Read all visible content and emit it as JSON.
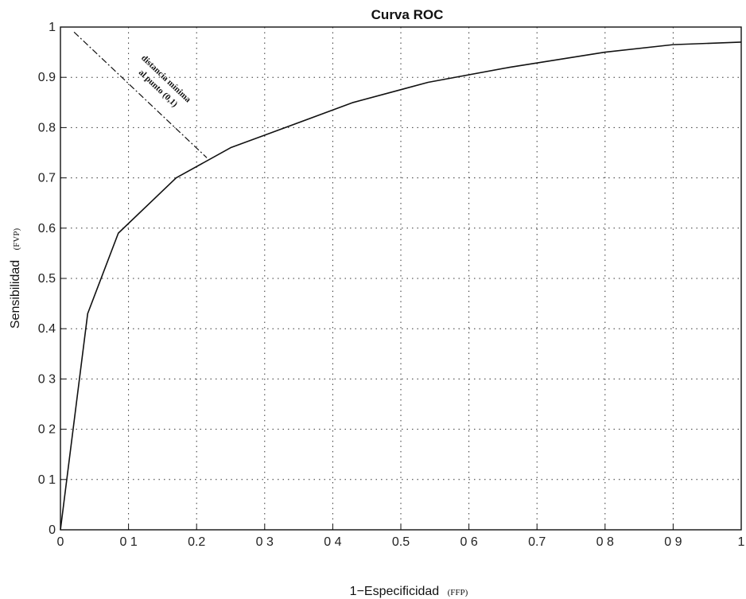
{
  "chart_data": {
    "type": "line",
    "title": "Curva ROC",
    "xlabel": "1−Especificidad",
    "xlabel_unit": "(FFP)",
    "ylabel": "Sensibilidad",
    "ylabel_unit": "(FVP)",
    "xlim": [
      0,
      1
    ],
    "ylim": [
      0,
      1
    ],
    "grid": true,
    "x_ticks": [
      0,
      0.1,
      0.2,
      0.3,
      0.4,
      0.5,
      0.6,
      0.7,
      0.8,
      0.9,
      1
    ],
    "x_tick_labels": [
      "0",
      "0 1",
      "0.2",
      "0 3",
      "0 4",
      "0.5",
      "0 6",
      "0.7",
      "0 8",
      "0 9",
      "1"
    ],
    "y_ticks": [
      0,
      0.1,
      0.2,
      0.3,
      0.4,
      0.5,
      0.6,
      0.7,
      0.8,
      0.9,
      1
    ],
    "y_tick_labels": [
      "0",
      "0 1",
      "0 2",
      "0 3",
      "0.4",
      "0.5",
      "0.6",
      "0.7",
      "0.8",
      "0.9",
      "1"
    ],
    "series": [
      {
        "x": [
          0,
          0.04,
          0.085,
          0.17,
          0.25,
          0.31,
          0.43,
          0.54,
          0.66,
          0.8,
          0.9,
          1.0
        ],
        "y": [
          0,
          0.43,
          0.59,
          0.7,
          0.76,
          0.79,
          0.85,
          0.89,
          0.92,
          0.95,
          0.965,
          0.97
        ]
      }
    ],
    "annotation": {
      "text_line1": "distancia mínima",
      "text_line2": "al punto (0,1)",
      "from": [
        0.02,
        0.99
      ],
      "to": [
        0.215,
        0.74
      ]
    }
  }
}
